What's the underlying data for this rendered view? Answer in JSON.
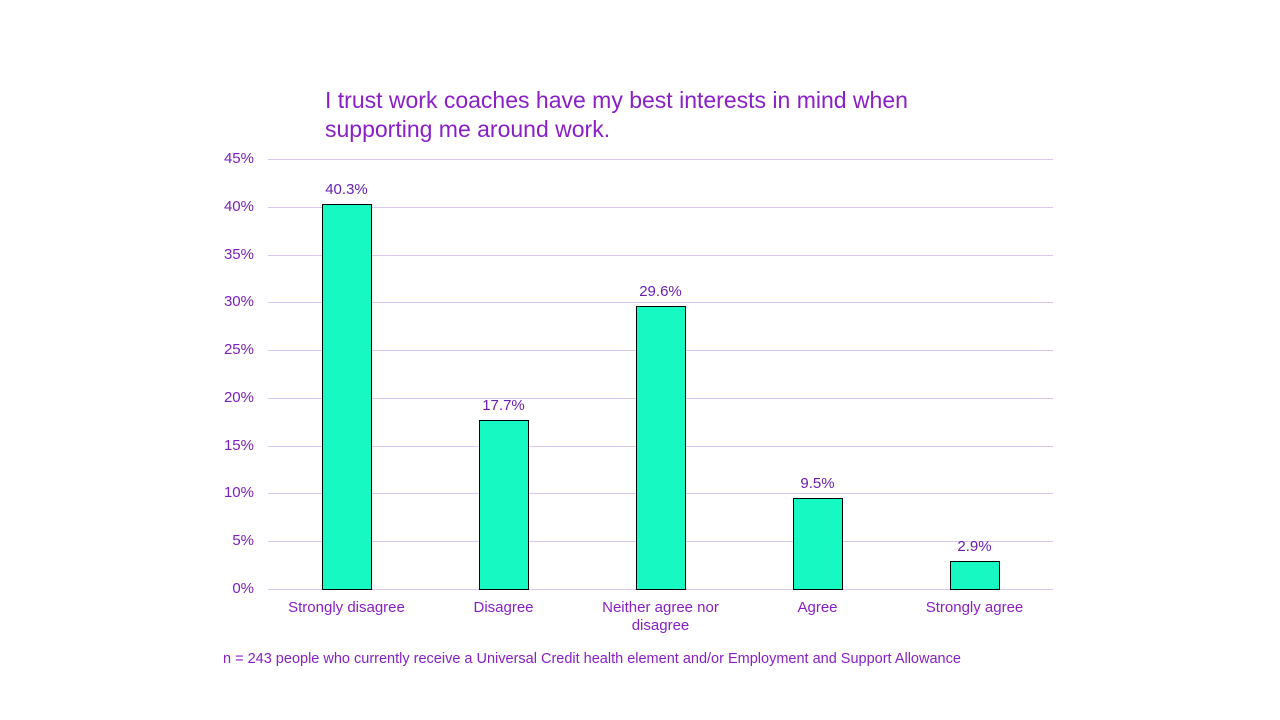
{
  "chart_data": {
    "type": "bar",
    "title": "I trust work coaches have my best interests in mind when supporting me around work.",
    "categories": [
      "Strongly disagree",
      "Disagree",
      "Neither agree nor disagree",
      "Agree",
      "Strongly agree"
    ],
    "values": [
      40.3,
      17.7,
      29.6,
      9.5,
      2.9
    ],
    "value_labels": [
      "40.3%",
      "17.7%",
      "29.6%",
      "9.5%",
      "2.9%"
    ],
    "xlabel": "",
    "ylabel": "",
    "ylim": [
      0,
      45
    ],
    "yticks": [
      "0%",
      "5%",
      "10%",
      "15%",
      "20%",
      "25%",
      "30%",
      "35%",
      "40%",
      "45%"
    ],
    "grid": true,
    "legend": "none",
    "bar_color": "#17F9C3",
    "text_color": "#8A1FC8",
    "footnote": "n = 243 people who currently receive a Universal Credit health element and/or Employment and Support Allowance"
  },
  "title_line1": "I trust work coaches have my best interests in mind when",
  "title_line2": "supporting me around work.",
  "categories_display": [
    {
      "line1": "Strongly disagree",
      "line2": ""
    },
    {
      "line1": "Disagree",
      "line2": ""
    },
    {
      "line1": "Neither agree nor",
      "line2": "disagree"
    },
    {
      "line1": "Agree",
      "line2": ""
    },
    {
      "line1": "Strongly agree",
      "line2": ""
    }
  ]
}
